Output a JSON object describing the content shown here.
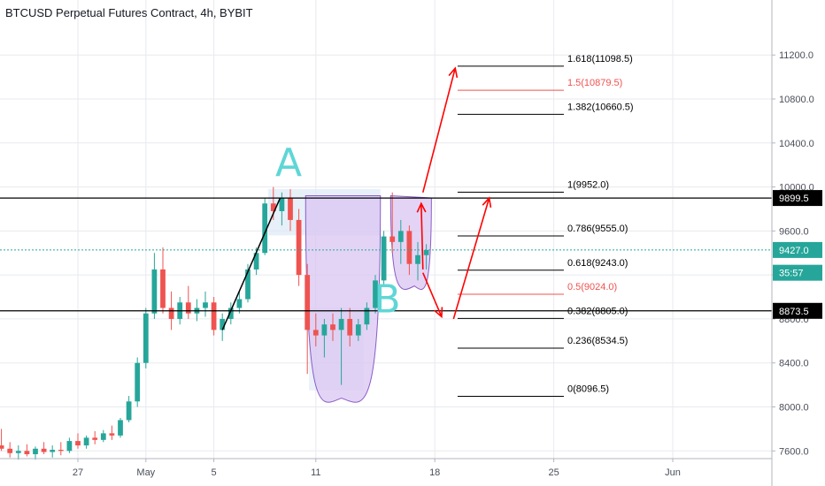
{
  "title": "BTCUSD Perpetual Futures Contract, 4h, BYBIT",
  "colors": {
    "up": "#26a69a",
    "down": "#ef5350",
    "fib_black": "#000000",
    "fib_red": "#ef5350",
    "arrow": "#ff0000",
    "handwriting": "#5fd6d6",
    "cup_fill": "#d9c5f2",
    "cup_stroke": "#8a5cc7",
    "current_price": "#26a69a"
  },
  "chart_data": {
    "type": "candlestick",
    "y_axis": {
      "range": [
        7500,
        11500
      ],
      "tick_labels": [
        "11200.0",
        "10800.0",
        "10400.0",
        "10000.0",
        "9600.0",
        "9200.0",
        "8800.0",
        "8400.0",
        "8000.0",
        "7600.0"
      ],
      "ticks": [
        11200,
        10800,
        10400,
        10000,
        9600,
        9200,
        8800,
        8400,
        8000,
        7600
      ]
    },
    "x_axis": {
      "tick_labels": [
        "27",
        "May",
        "5",
        "11",
        "18",
        "25",
        "Jun"
      ],
      "ticks": [
        27,
        31,
        35,
        41,
        48,
        55,
        62
      ],
      "range": [
        21.5,
        64
      ]
    },
    "price_tags": [
      {
        "label": "9899.5",
        "value": 9899.5,
        "style": "black"
      },
      {
        "label": "9427.0",
        "value": 9427,
        "style": "green"
      },
      {
        "label": "35:57",
        "value": 9220,
        "style": "green"
      },
      {
        "label": "8873.5",
        "value": 8873.5,
        "style": "black"
      }
    ],
    "fib_levels": [
      {
        "label": "1.618(11098.5)",
        "value": 11098.5,
        "color": "black"
      },
      {
        "label": "1.5(10879.5)",
        "value": 10879.5,
        "color": "red"
      },
      {
        "label": "1.382(10660.5)",
        "value": 10660.5,
        "color": "black"
      },
      {
        "label": "1(9952.0)",
        "value": 9952,
        "color": "black"
      },
      {
        "label": "0.786(9555.0)",
        "value": 9555,
        "color": "black"
      },
      {
        "label": "0.618(9243.0)",
        "value": 9243,
        "color": "black"
      },
      {
        "label": "0.5(9024.0)",
        "value": 9024,
        "color": "red"
      },
      {
        "label": "0.382(8805.0)",
        "value": 8805,
        "color": "black"
      },
      {
        "label": "0.236(8534.5)",
        "value": 8534.5,
        "color": "black"
      },
      {
        "label": "0(8096.5)",
        "value": 8096.5,
        "color": "black"
      }
    ],
    "fib_x_range": [
      35.8,
      43.8
    ],
    "horizontal_lines": [
      9899.5,
      8873.5
    ],
    "current_price": 9427,
    "annotations": [
      {
        "text": "A",
        "x": 39.4,
        "y": 10100
      },
      {
        "text": "B",
        "x": 45.2,
        "y": 8860
      }
    ],
    "candles": [
      {
        "x": 22.0,
        "o": 7620,
        "h": 7700,
        "l": 7560,
        "c": 7650
      },
      {
        "x": 22.5,
        "o": 7650,
        "h": 7800,
        "l": 7600,
        "c": 7620
      },
      {
        "x": 23.0,
        "o": 7620,
        "h": 7680,
        "l": 7540,
        "c": 7580
      },
      {
        "x": 23.5,
        "o": 7580,
        "h": 7650,
        "l": 7520,
        "c": 7600
      },
      {
        "x": 24.0,
        "o": 7600,
        "h": 7660,
        "l": 7550,
        "c": 7570
      },
      {
        "x": 24.5,
        "o": 7570,
        "h": 7640,
        "l": 7520,
        "c": 7620
      },
      {
        "x": 25.0,
        "o": 7620,
        "h": 7680,
        "l": 7570,
        "c": 7590
      },
      {
        "x": 25.5,
        "o": 7590,
        "h": 7650,
        "l": 7540,
        "c": 7610
      },
      {
        "x": 26.0,
        "o": 7610,
        "h": 7680,
        "l": 7560,
        "c": 7600
      },
      {
        "x": 26.5,
        "o": 7600,
        "h": 7720,
        "l": 7580,
        "c": 7690
      },
      {
        "x": 27.0,
        "o": 7690,
        "h": 7760,
        "l": 7620,
        "c": 7650
      },
      {
        "x": 27.5,
        "o": 7650,
        "h": 7740,
        "l": 7620,
        "c": 7720
      },
      {
        "x": 28.0,
        "o": 7720,
        "h": 7780,
        "l": 7660,
        "c": 7700
      },
      {
        "x": 28.5,
        "o": 7700,
        "h": 7790,
        "l": 7680,
        "c": 7760
      },
      {
        "x": 29.0,
        "o": 7760,
        "h": 7830,
        "l": 7700,
        "c": 7740
      },
      {
        "x": 29.5,
        "o": 7740,
        "h": 7900,
        "l": 7720,
        "c": 7880
      },
      {
        "x": 30.0,
        "o": 7880,
        "h": 8100,
        "l": 7860,
        "c": 8050
      },
      {
        "x": 30.5,
        "o": 8050,
        "h": 8450,
        "l": 8000,
        "c": 8400
      },
      {
        "x": 31.0,
        "o": 8400,
        "h": 8900,
        "l": 8350,
        "c": 8850
      },
      {
        "x": 31.5,
        "o": 8850,
        "h": 9400,
        "l": 8800,
        "c": 9250
      },
      {
        "x": 32.0,
        "o": 9250,
        "h": 9450,
        "l": 8850,
        "c": 8900
      },
      {
        "x": 32.5,
        "o": 8900,
        "h": 9050,
        "l": 8700,
        "c": 8800
      },
      {
        "x": 33.0,
        "o": 8800,
        "h": 9000,
        "l": 8750,
        "c": 8950
      },
      {
        "x": 33.5,
        "o": 8950,
        "h": 9100,
        "l": 8800,
        "c": 8850
      },
      {
        "x": 34.0,
        "o": 8850,
        "h": 8980,
        "l": 8780,
        "c": 8900
      },
      {
        "x": 34.5,
        "o": 8900,
        "h": 9050,
        "l": 8820,
        "c": 8950
      },
      {
        "x": 35.0,
        "o": 8950,
        "h": 9000,
        "l": 8650,
        "c": 8700
      },
      {
        "x": 35.5,
        "o": 8700,
        "h": 8850,
        "l": 8600,
        "c": 8800
      },
      {
        "x": 36.0,
        "o": 8800,
        "h": 8950,
        "l": 8750,
        "c": 8900
      },
      {
        "x": 36.5,
        "o": 8900,
        "h": 9050,
        "l": 8850,
        "c": 8980
      },
      {
        "x": 37.0,
        "o": 8980,
        "h": 9300,
        "l": 8950,
        "c": 9250
      },
      {
        "x": 37.5,
        "o": 9250,
        "h": 9450,
        "l": 9200,
        "c": 9400
      },
      {
        "x": 38.0,
        "o": 9400,
        "h": 9900,
        "l": 9380,
        "c": 9850
      },
      {
        "x": 38.5,
        "o": 9850,
        "h": 10000,
        "l": 9700,
        "c": 9780
      },
      {
        "x": 39.0,
        "o": 9780,
        "h": 9950,
        "l": 9650,
        "c": 9900
      },
      {
        "x": 39.5,
        "o": 9900,
        "h": 9980,
        "l": 9600,
        "c": 9700
      },
      {
        "x": 40.0,
        "o": 9700,
        "h": 9800,
        "l": 9100,
        "c": 9200
      },
      {
        "x": 40.5,
        "o": 9200,
        "h": 9300,
        "l": 8300,
        "c": 8700
      },
      {
        "x": 41.0,
        "o": 8700,
        "h": 8850,
        "l": 8550,
        "c": 8650
      },
      {
        "x": 41.5,
        "o": 8650,
        "h": 8800,
        "l": 8450,
        "c": 8750
      },
      {
        "x": 42.0,
        "o": 8750,
        "h": 8850,
        "l": 8600,
        "c": 8700
      },
      {
        "x": 42.5,
        "o": 8700,
        "h": 8900,
        "l": 8200,
        "c": 8800
      },
      {
        "x": 43.0,
        "o": 8800,
        "h": 8900,
        "l": 8550,
        "c": 8650
      },
      {
        "x": 43.5,
        "o": 8650,
        "h": 8800,
        "l": 8600,
        "c": 8750
      },
      {
        "x": 44.0,
        "o": 8750,
        "h": 8950,
        "l": 8700,
        "c": 8900
      },
      {
        "x": 44.5,
        "o": 8900,
        "h": 9200,
        "l": 8850,
        "c": 9150
      },
      {
        "x": 45.0,
        "o": 9150,
        "h": 9600,
        "l": 9100,
        "c": 9550
      },
      {
        "x": 45.5,
        "o": 9550,
        "h": 9950,
        "l": 9400,
        "c": 9500
      },
      {
        "x": 46.0,
        "o": 9500,
        "h": 9700,
        "l": 9300,
        "c": 9600
      },
      {
        "x": 46.5,
        "o": 9600,
        "h": 9650,
        "l": 9200,
        "c": 9300
      },
      {
        "x": 47.0,
        "o": 9300,
        "h": 9500,
        "l": 9150,
        "c": 9380
      },
      {
        "x": 47.5,
        "o": 9380,
        "h": 9480,
        "l": 9250,
        "c": 9427
      }
    ],
    "drawn_lines": [
      {
        "from": [
          35.5,
          8700
        ],
        "to": [
          38.9,
          9900
        ],
        "color": "black"
      }
    ],
    "arrows": [
      {
        "points": [
          [
            47.3,
            9950
          ],
          [
            49.2,
            11080
          ]
        ]
      },
      {
        "points": [
          [
            47.3,
            9250
          ],
          [
            47.2,
            9850
          ]
        ]
      },
      {
        "points": [
          [
            47.3,
            9220
          ],
          [
            48.4,
            8820
          ]
        ]
      },
      {
        "points": [
          [
            49.1,
            8800
          ],
          [
            51.2,
            9900
          ]
        ]
      }
    ],
    "cup_big": {
      "left": [
        40.4,
        9920
      ],
      "bottom": [
        42.5,
        8080
      ],
      "right": [
        44.8,
        9920
      ]
    },
    "cup_small": {
      "left": [
        45.4,
        9920
      ],
      "bottom": [
        46.8,
        9100
      ],
      "right": [
        47.8,
        9900
      ]
    }
  }
}
